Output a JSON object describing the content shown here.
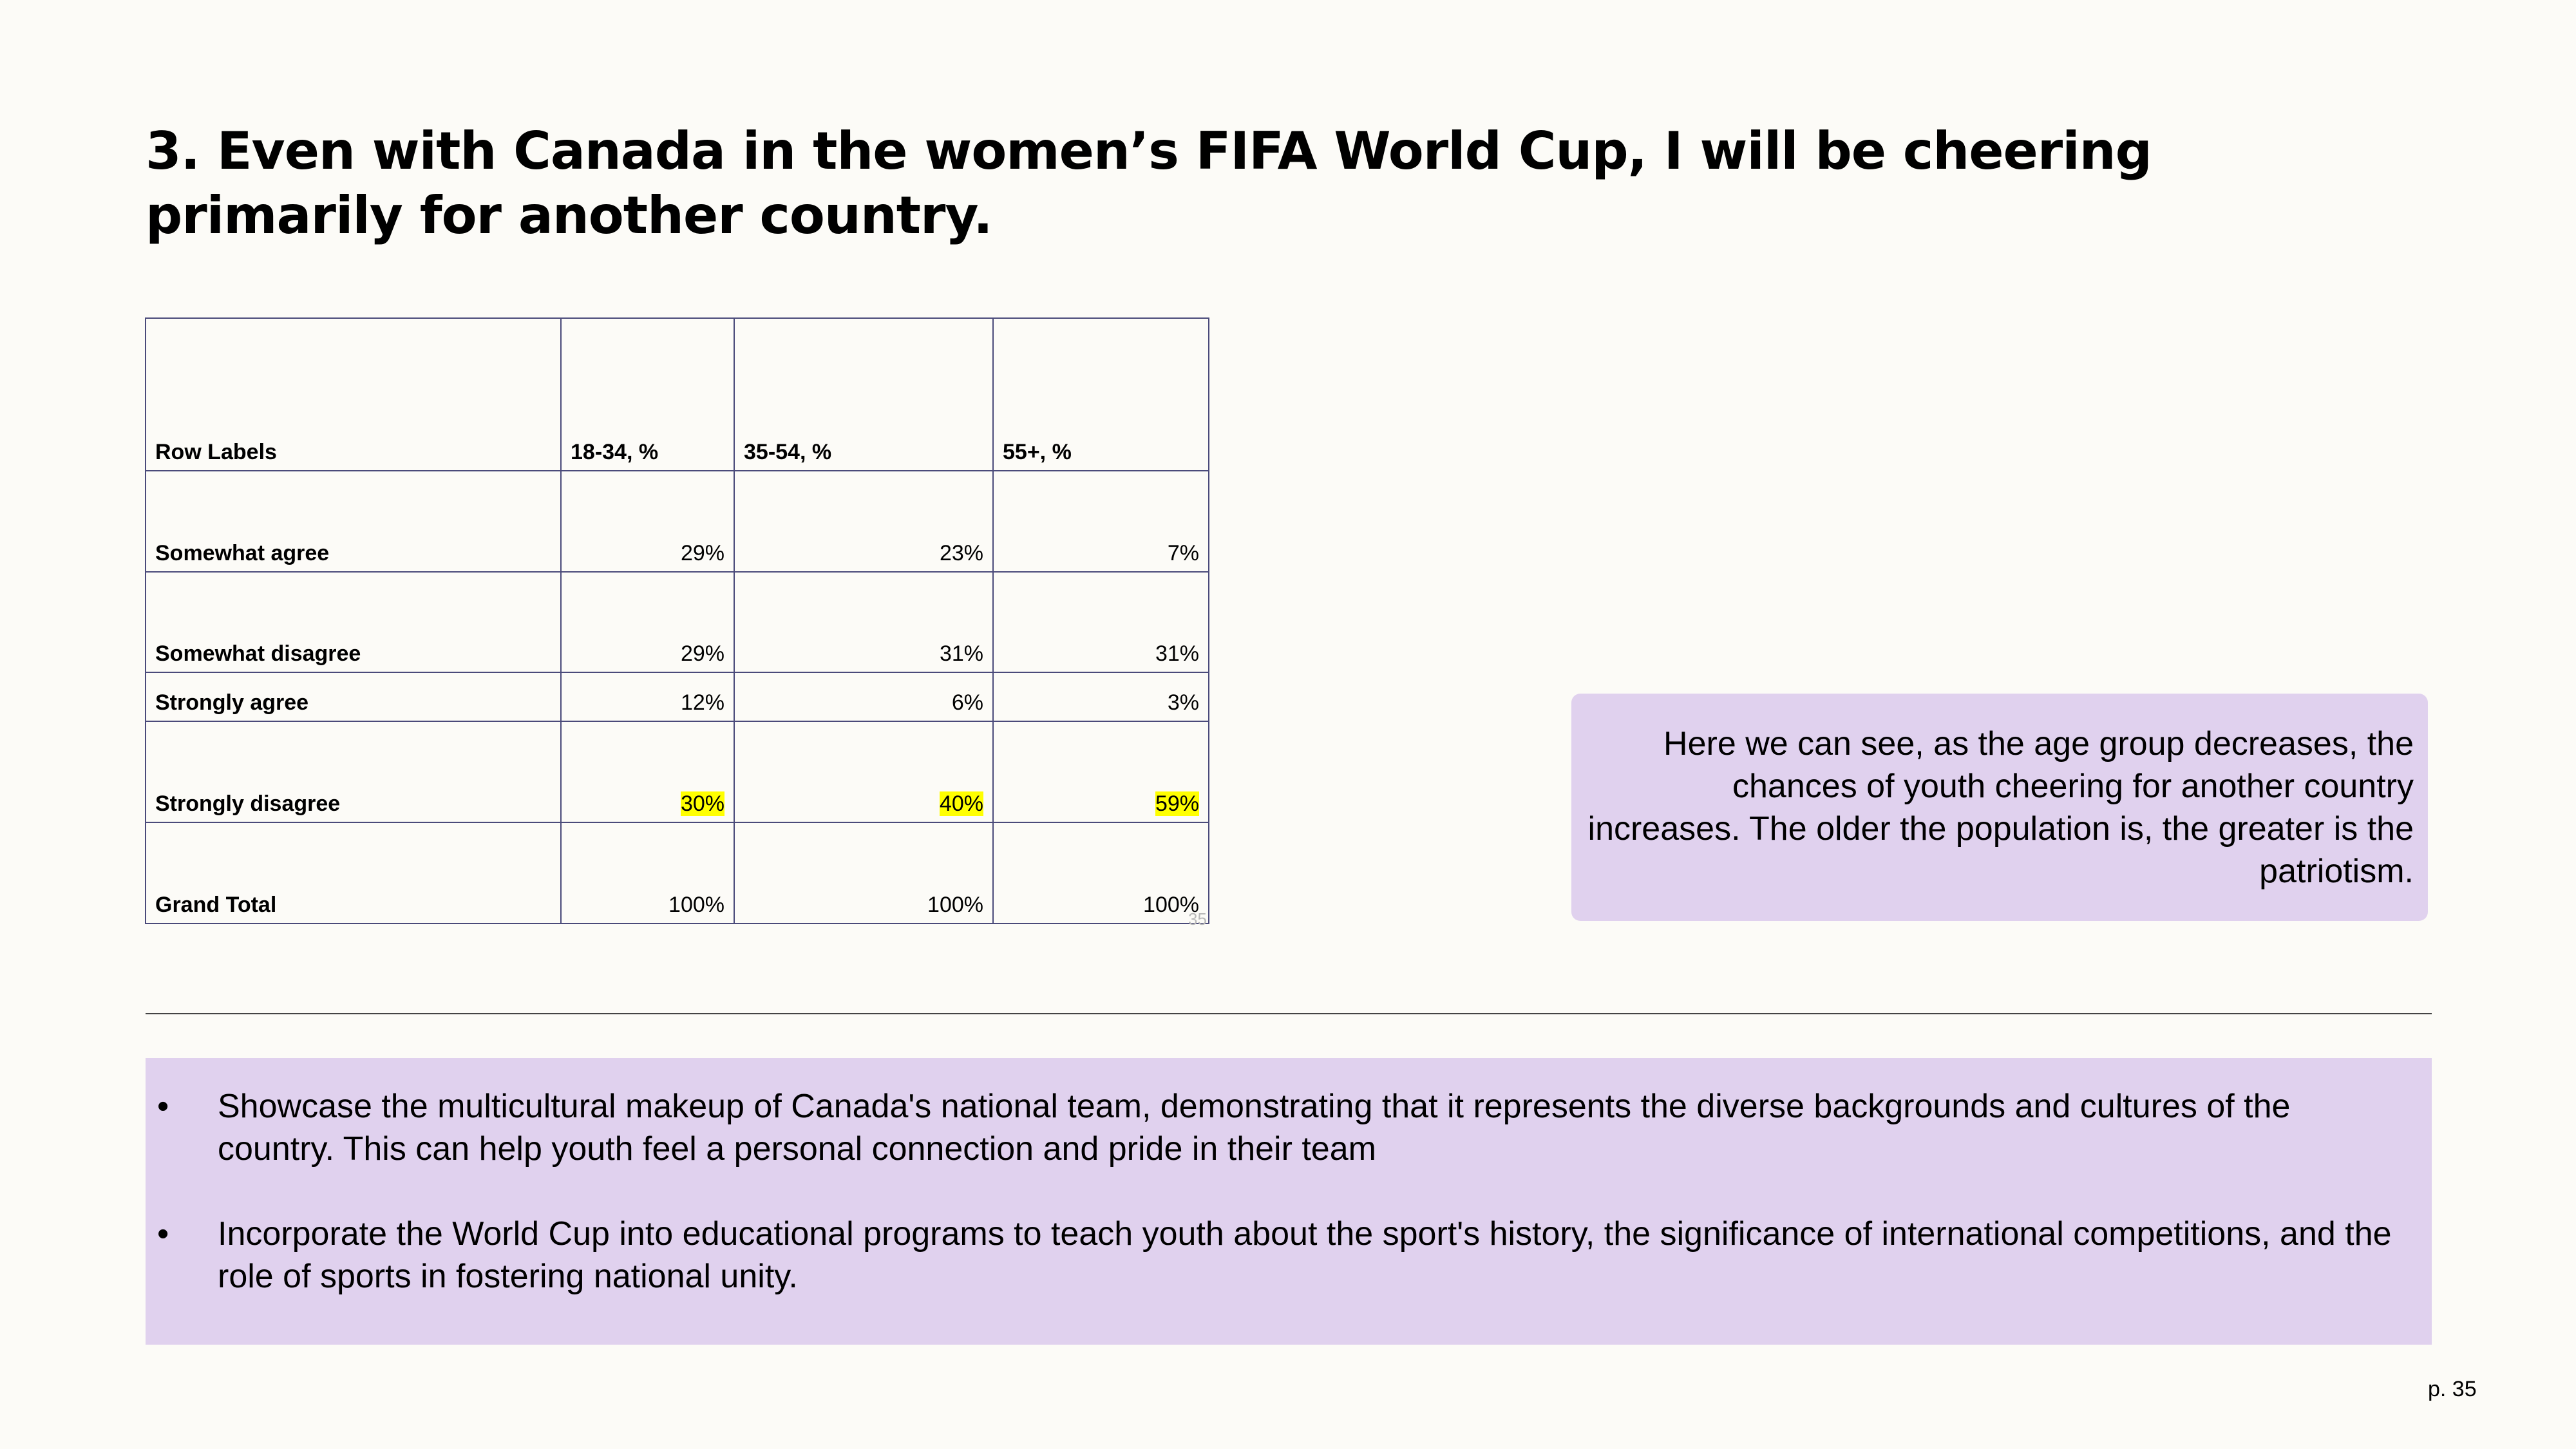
{
  "title": "3. Even with Canada in the women’s FIFA World Cup, I will be cheering primarily for another country.",
  "table": {
    "headers": [
      "Row Labels",
      "18-34, %",
      "35-54, %",
      "55+, %"
    ],
    "rows": [
      {
        "label": "Somewhat agree",
        "values": [
          "29%",
          "23%",
          "7%"
        ]
      },
      {
        "label": "Somewhat disagree",
        "values": [
          "29%",
          "31%",
          "31%"
        ]
      },
      {
        "label": "Strongly agree",
        "values": [
          "12%",
          "6%",
          "3%"
        ]
      },
      {
        "label": "Strongly disagree",
        "values": [
          "30%",
          "40%",
          "59%"
        ],
        "highlight_color": "#ffff00"
      },
      {
        "label": "Grand Total",
        "values": [
          "100%",
          "100%",
          "100%"
        ]
      }
    ],
    "ghost_text": "35"
  },
  "callout": {
    "text": "Here we can see, as the age group decreases, the chances of youth cheering for another country increases. The older the population is, the greater is the patriotism.",
    "background": "#e0d1ee"
  },
  "recommendations": {
    "bullet": "•",
    "items": [
      "Showcase the multicultural makeup of Canada's national team, demonstrating that it represents the diverse backgrounds and cultures of the country. This can help youth feel a personal connection and pride in their team",
      "Incorporate the World Cup into educational programs to teach youth about the sport's history, the significance of international competitions, and the role of sports in fostering national unity."
    ]
  },
  "page_number": "p. 35"
}
